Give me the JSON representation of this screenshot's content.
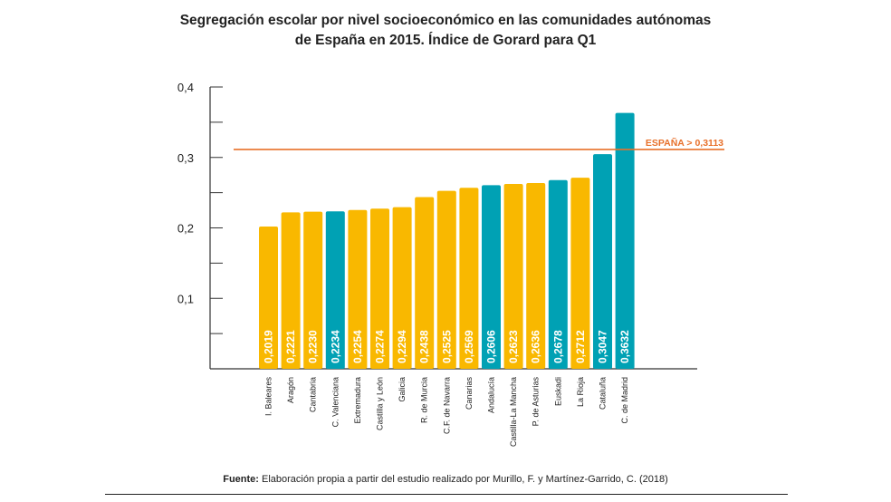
{
  "title": {
    "line1": "Segregación escolar por nivel socioeconómico en las comunidades autónomas",
    "line2": "de España en 2015. Índice de Gorard para Q1"
  },
  "chart_data": {
    "type": "bar",
    "title": "Segregación escolar por nivel socioeconómico en las comunidades autónomas de España en 2015. Índice de Gorard para Q1",
    "xlabel": "",
    "ylabel": "",
    "ylim": [
      0,
      0.4
    ],
    "yticks": [
      {
        "value": 0.1,
        "label": "0,1"
      },
      {
        "value": 0.2,
        "label": "0,2"
      },
      {
        "value": 0.3,
        "label": "0,3"
      },
      {
        "value": 0.4,
        "label": "0,4"
      }
    ],
    "categories": [
      "I. Baleares",
      "Aragón",
      "Cantabria",
      "C. Valenciana",
      "Extremadura",
      "Castilla y León",
      "Galicia",
      "R. de Murcia",
      "C.F. de Navarra",
      "Canarias",
      "Andalucía",
      "Castilla-La Mancha",
      "P. de Asturias",
      "Euskadi",
      "La Rioja",
      "Cataluña",
      "C. de Madrid"
    ],
    "values": [
      0.2019,
      0.2221,
      0.223,
      0.2234,
      0.2254,
      0.2274,
      0.2294,
      0.2438,
      0.2525,
      0.2569,
      0.2606,
      0.2623,
      0.2636,
      0.2678,
      0.2712,
      0.3047,
      0.3632
    ],
    "value_labels": [
      "0,2019",
      "0,2221",
      "0,2230",
      "0,2234",
      "0,2254",
      "0,2274",
      "0,2294",
      "0,2438",
      "0,2525",
      "0,2569",
      "0,2606",
      "0,2623",
      "0,2636",
      "0,2678",
      "0,2712",
      "0,3047",
      "0,3632"
    ],
    "highlighted": [
      "C. Valenciana",
      "Andalucía",
      "Euskadi",
      "Cataluña",
      "C. de Madrid"
    ],
    "reference_line": {
      "value": 0.3113,
      "label": "ESPAÑA > 0,3113"
    },
    "colors": {
      "default": "#F9B800",
      "highlight": "#00A1B4",
      "reference": "#E8702A",
      "axis": "#333333"
    }
  },
  "source": {
    "prefix": "Fuente:",
    "text": " Elaboración propia a partir del estudio realizado por Murillo, F. y Martínez-Garrido, C. (2018)"
  }
}
